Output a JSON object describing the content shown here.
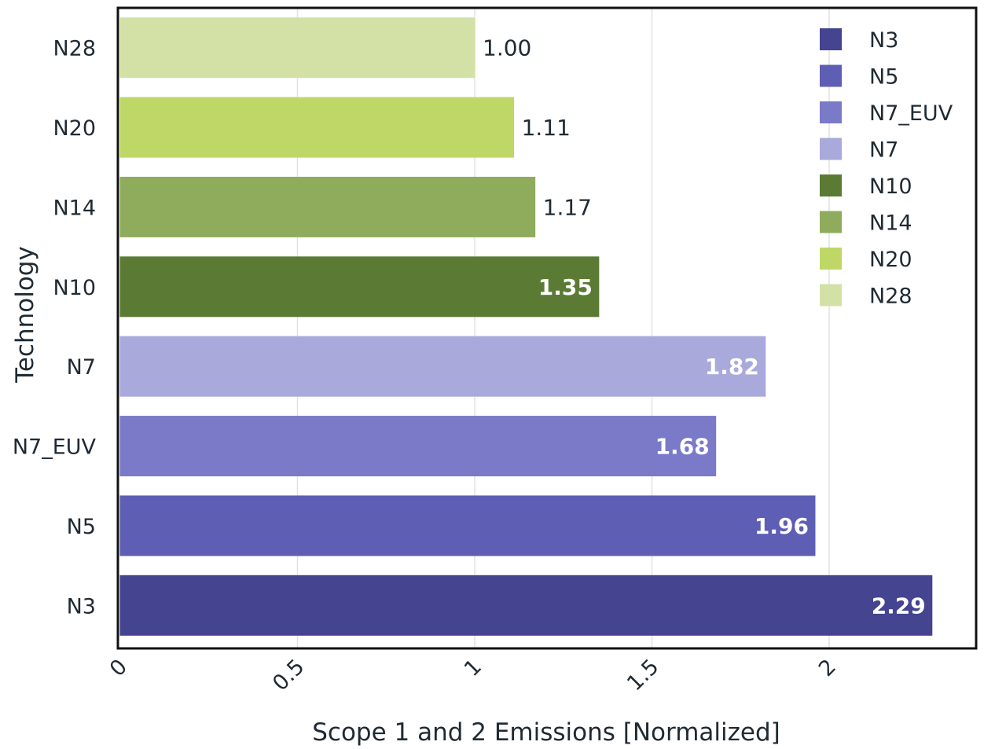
{
  "chart_data": {
    "type": "bar",
    "orientation": "horizontal",
    "xlabel": "Scope 1 and 2 Emissions [Normalized]",
    "ylabel": "Technology",
    "xlim": [
      0,
      2.4
    ],
    "x_ticks": [
      "0",
      "0.5",
      "1",
      "1.5",
      "2"
    ],
    "x_tick_values": [
      0,
      0.5,
      1,
      1.5,
      2
    ],
    "grid": true,
    "legend_position": "top-right",
    "categories": [
      "N28",
      "N20",
      "N14",
      "N10",
      "N7",
      "N7_EUV",
      "N5",
      "N3"
    ],
    "values": [
      1.0,
      1.11,
      1.17,
      1.35,
      1.82,
      1.68,
      1.96,
      2.29
    ],
    "value_labels": [
      "1.00",
      "1.11",
      "1.17",
      "1.35",
      "1.82",
      "1.68",
      "1.96",
      "2.29"
    ],
    "colors": [
      "#d3e1a6",
      "#bed766",
      "#8fac5c",
      "#5b7b34",
      "#a9a9dc",
      "#7a7ac8",
      "#5e5eb4",
      "#444491"
    ],
    "legend": [
      {
        "label": "N3",
        "color": "#444491"
      },
      {
        "label": "N5",
        "color": "#5e5eb4"
      },
      {
        "label": "N7_EUV",
        "color": "#7a7ac8"
      },
      {
        "label": "N7",
        "color": "#a9a9dc"
      },
      {
        "label": "N10",
        "color": "#5b7b34"
      },
      {
        "label": "N14",
        "color": "#8fac5c"
      },
      {
        "label": "N20",
        "color": "#bed766"
      },
      {
        "label": "N28",
        "color": "#d3e1a6"
      }
    ]
  }
}
